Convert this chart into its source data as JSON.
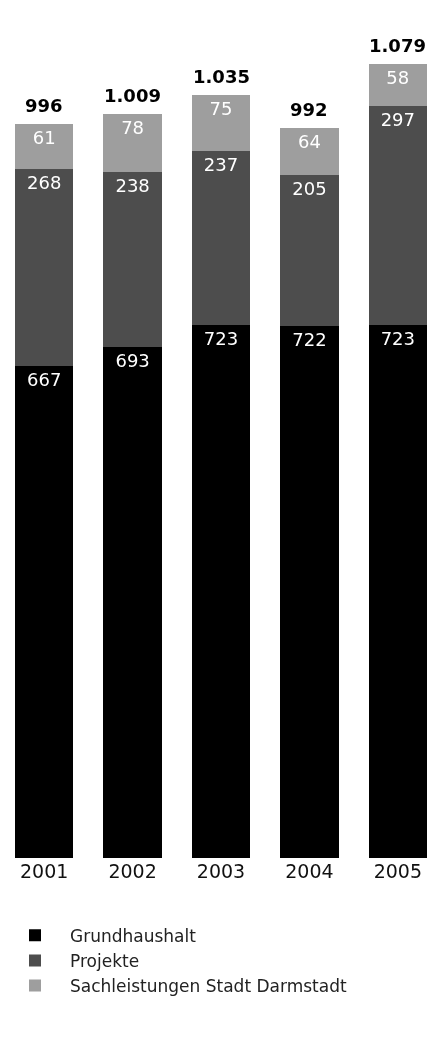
{
  "chart_data": {
    "type": "bar",
    "stacked": true,
    "categories": [
      "2001",
      "2002",
      "2003",
      "2004",
      "2005"
    ],
    "series": [
      {
        "name": "Grundhaushalt",
        "color": "#000000",
        "values": [
          667,
          693,
          723,
          722,
          723
        ]
      },
      {
        "name": "Projekte",
        "color": "#4d4d4d",
        "values": [
          268,
          238,
          237,
          205,
          297
        ]
      },
      {
        "name": "Sachleistungen Stadt Darmstadt",
        "color": "#9e9e9e",
        "values": [
          61,
          78,
          75,
          64,
          58
        ]
      }
    ],
    "data_labels": true,
    "totals": [
      "996",
      "1.009",
      "1.035",
      "992",
      "1.079"
    ],
    "legend": "bottom"
  }
}
